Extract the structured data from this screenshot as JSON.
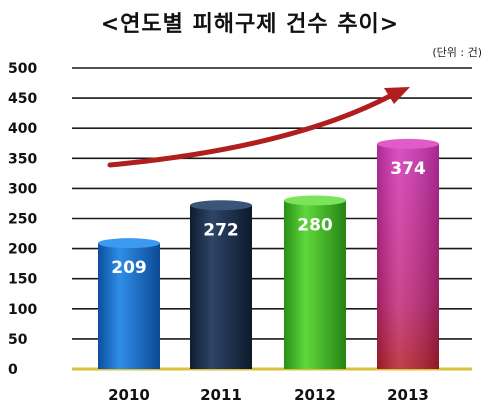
{
  "title": "<연도별 피해구제 건수 추이>",
  "unit_label": "(단위 : 건)",
  "colors": {
    "bar_2010": "#1e78d6",
    "bar_2011": "#1f3350",
    "bar_2012": "#44c02c",
    "bar_2013": "#cc2a98",
    "trend_arrow": "#b01e1e",
    "baseline": "#d8c23a"
  },
  "chart_data": {
    "type": "bar",
    "categories": [
      "2010",
      "2011",
      "2012",
      "2013"
    ],
    "values": [
      209,
      272,
      280,
      374
    ],
    "value_labels": [
      "209",
      "272",
      "280",
      "374"
    ],
    "ylim": [
      0,
      500
    ],
    "yticks": [
      "0",
      "50",
      "100",
      "150",
      "200",
      "250",
      "300",
      "350",
      "400",
      "450",
      "500"
    ],
    "grid": true,
    "trend_arrow": true
  }
}
